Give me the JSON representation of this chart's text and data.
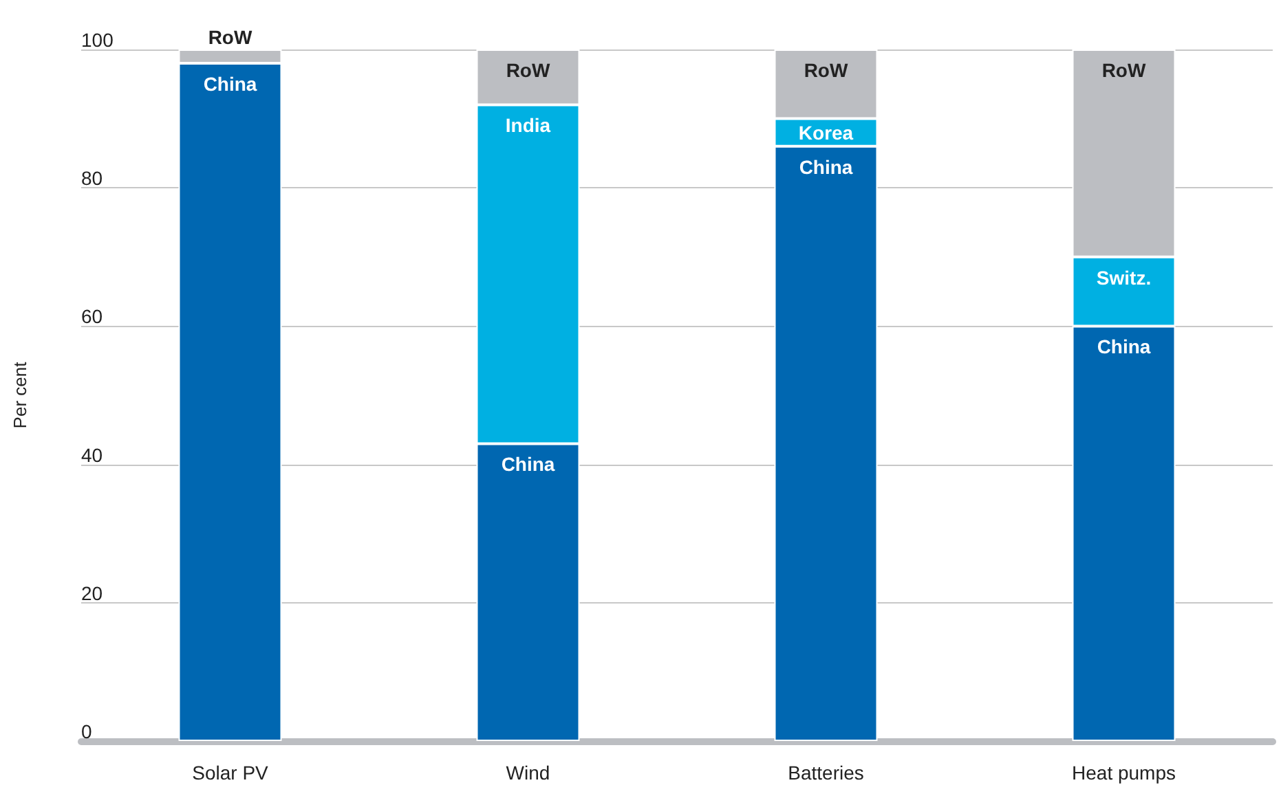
{
  "chart_data": {
    "type": "bar",
    "stacked": true,
    "ylabel": "Per cent",
    "categories": [
      "Solar PV",
      "Wind",
      "Batteries",
      "Heat pumps"
    ],
    "series": [
      {
        "color": "#0067b1",
        "values": [
          98,
          43,
          86,
          60
        ],
        "value_labels": [
          "China",
          "China",
          "China",
          "China"
        ]
      },
      {
        "color": "#00b0e2",
        "values": [
          0,
          49,
          4,
          10
        ],
        "value_labels": [
          null,
          "India",
          "Korea",
          "Switz."
        ]
      },
      {
        "color": "#bcbec2",
        "values": [
          2,
          8,
          10,
          30
        ],
        "value_labels": [
          "RoW",
          "RoW",
          "RoW",
          "RoW"
        ]
      }
    ],
    "ylim": [
      0,
      100
    ],
    "yticks": [
      0,
      20,
      40,
      60,
      80,
      100
    ],
    "grid": "y"
  }
}
